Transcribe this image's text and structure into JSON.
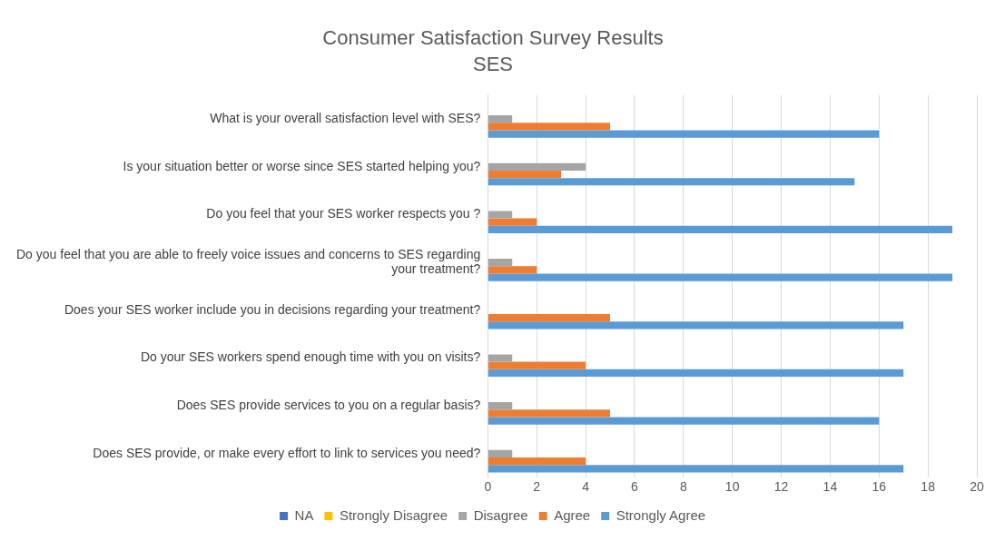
{
  "chart_data": {
    "type": "bar",
    "orientation": "horizontal",
    "title": "Consumer Satisfaction Survey Results",
    "subtitle": "SES",
    "categories": [
      "What is your overall satisfaction level with SES?",
      "Is your situation better or worse since SES started helping you?",
      "Do you feel that your SES worker respects you ?",
      "Do you feel that you are able to freely voice issues and concerns to SES regarding your treatment?",
      "Does your SES worker include you in decisions regarding your treatment?",
      "Do your SES workers spend enough time with you on visits?",
      "Does SES provide services to you on a regular basis?",
      "Does SES provide, or make every effort to link to services you need?"
    ],
    "series": [
      {
        "name": "NA",
        "color": "#4472c4",
        "values": [
          0,
          0,
          0,
          0,
          0,
          0,
          0,
          0
        ]
      },
      {
        "name": "Strongly Disagree",
        "color": "#ffc000",
        "values": [
          0,
          0,
          0,
          0,
          0,
          0,
          0,
          0
        ]
      },
      {
        "name": "Disagree",
        "color": "#a5a5a5",
        "values": [
          1,
          4,
          1,
          1,
          0,
          1,
          1,
          1
        ]
      },
      {
        "name": "Agree",
        "color": "#ed7d31",
        "values": [
          5,
          3,
          2,
          2,
          5,
          4,
          5,
          4
        ]
      },
      {
        "name": "Strongly Agree",
        "color": "#5b9bd5",
        "values": [
          16,
          15,
          19,
          19,
          17,
          17,
          16,
          17
        ]
      }
    ],
    "xlim": [
      0,
      20
    ],
    "xticks": [
      0,
      2,
      4,
      6,
      8,
      10,
      12,
      14,
      16,
      18,
      20
    ],
    "grid": "x",
    "legend": "bottom"
  }
}
